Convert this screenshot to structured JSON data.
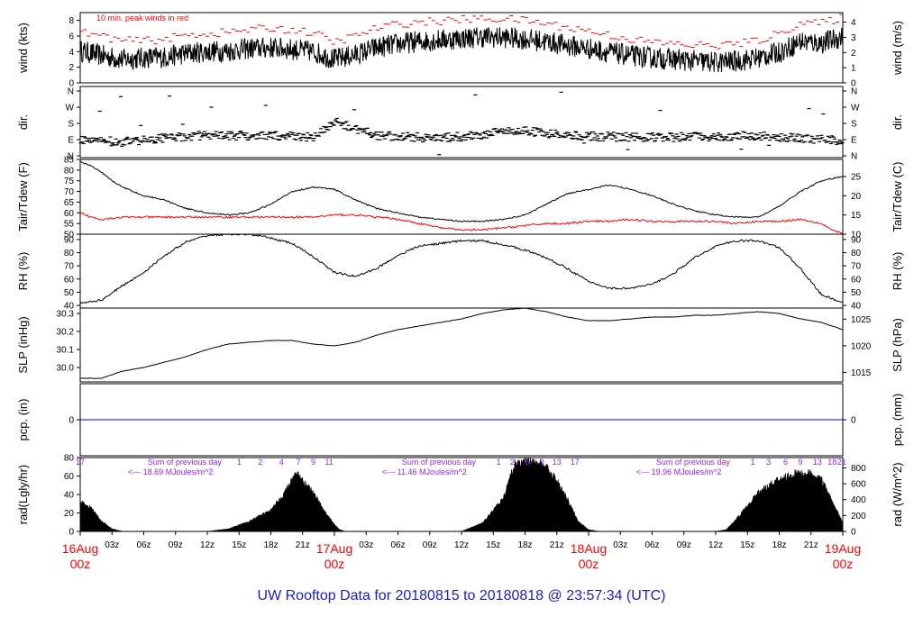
{
  "title": "UW Rooftop Data for 20180815  to  20180818 @ 23:57:34  (UTC)",
  "colors": {
    "black": "#000000",
    "red": "#ff0000",
    "blue": "#0000ff",
    "purple": "#a020f0",
    "title_blue": "#1a1ad6"
  },
  "x_axis": {
    "ticks": [
      "03z",
      "06z",
      "09z",
      "12z",
      "15z",
      "18z",
      "21z",
      "03z",
      "06z",
      "09z",
      "12z",
      "15z",
      "18z",
      "21z",
      "03z",
      "06z",
      "09z",
      "12z",
      "15z",
      "18z",
      "21z"
    ],
    "day_labels": [
      {
        "hour": 0,
        "top": "16Aug",
        "bottom": "00z"
      },
      {
        "hour": 24,
        "top": "17Aug",
        "bottom": "00z"
      },
      {
        "hour": 48,
        "top": "18Aug",
        "bottom": "00z"
      },
      {
        "hour": 72,
        "top": "19Aug",
        "bottom": "00z"
      }
    ]
  },
  "panels": {
    "wind": {
      "left_label": "wind (kts)",
      "right_label": "wind (m/s)",
      "left_ticks": [
        "0",
        "2",
        "4",
        "6",
        "8"
      ],
      "right_ticks": [
        "0",
        "1",
        "2",
        "3",
        "4"
      ],
      "note": "10 min. peak winds in red"
    },
    "dir": {
      "left_label": "dir.",
      "right_label": "dir.",
      "ticks": [
        "N",
        "W",
        "S",
        "E",
        "N"
      ]
    },
    "temp": {
      "left_label": "Tair/Tdew (F)",
      "right_label": "Tair/Tdew (C)",
      "left_ticks": [
        "50",
        "55",
        "60",
        "65",
        "70",
        "75",
        "80",
        "85"
      ],
      "right_ticks": [
        "10",
        "15",
        "20",
        "25"
      ]
    },
    "rh": {
      "left_label": "RH (%)",
      "right_label": "RH (%)",
      "ticks": [
        "40",
        "50",
        "60",
        "70",
        "80",
        "90"
      ]
    },
    "slp": {
      "left_label": "SLP (inHg)",
      "right_label": "SLP (hPa)",
      "left_ticks": [
        "30.0",
        "30.1",
        "30.2",
        "30.3"
      ],
      "right_ticks": [
        "1015",
        "1020",
        "1025"
      ]
    },
    "pcp": {
      "left_label": "pcp. (in)",
      "right_label": "pcp. (mm)",
      "left_ticks": [
        "0"
      ],
      "right_ticks": [
        "0"
      ]
    },
    "rad": {
      "left_label": "rad(Lgly/hr)",
      "right_label": "rad (W/m^2)",
      "left_ticks": [
        "0",
        "20",
        "40",
        "60",
        "80"
      ],
      "right_ticks": [
        "0",
        "200",
        "400",
        "600",
        "800"
      ],
      "daily_sums": [
        {
          "line1": "Sum of previous day",
          "line2": "<--- 18.69 MJoules/m^2"
        },
        {
          "line1": "Sum of previous day",
          "line2": "<--- 11.46 MJoules/m^2"
        },
        {
          "line1": "Sum of previous day",
          "line2": "<--- 19.96 MJoules/m^2"
        }
      ],
      "hour_marks": [
        {
          "hour": 0,
          "label": "17"
        },
        {
          "hour": 15,
          "label": "1"
        },
        {
          "hour": 17,
          "label": "2"
        },
        {
          "hour": 19,
          "label": "4"
        },
        {
          "hour": 20.6,
          "label": "7"
        },
        {
          "hour": 22,
          "label": "9"
        },
        {
          "hour": 23.5,
          "label": "11"
        },
        {
          "hour": 39.5,
          "label": "1"
        },
        {
          "hour": 40.8,
          "label": "2"
        },
        {
          "hour": 42.2,
          "label": "6"
        },
        {
          "hour": 43.6,
          "label": "9"
        },
        {
          "hour": 45,
          "label": "13"
        },
        {
          "hour": 46.7,
          "label": "17"
        },
        {
          "hour": 63.5,
          "label": "1"
        },
        {
          "hour": 65,
          "label": "3"
        },
        {
          "hour": 66.6,
          "label": "6"
        },
        {
          "hour": 68,
          "label": "9"
        },
        {
          "hour": 69.6,
          "label": "13"
        },
        {
          "hour": 71,
          "label": "18"
        },
        {
          "hour": 71.9,
          "label": "21"
        }
      ]
    }
  },
  "chart_data": {
    "type": "line",
    "title": "UW Rooftop Data for 20180815  to  20180818 @ 23:57:34  (UTC)",
    "x_unit": "hours since 16Aug 00z",
    "xlim": [
      0,
      72
    ],
    "series": [
      {
        "name": "wind (kts)",
        "ylim": [
          0,
          9
        ],
        "x": [
          0,
          2,
          4,
          6,
          8,
          10,
          12,
          14,
          16,
          18,
          20,
          22,
          24,
          26,
          28,
          30,
          32,
          34,
          36,
          38,
          40,
          42,
          44,
          46,
          48,
          50,
          52,
          54,
          56,
          58,
          60,
          62,
          64,
          66,
          68,
          70,
          72
        ],
        "values": [
          4.1,
          3.5,
          3.0,
          3.2,
          3.3,
          3.8,
          4.0,
          4.1,
          4.4,
          4.5,
          4.3,
          4.0,
          3.0,
          3.6,
          4.5,
          5.0,
          5.3,
          5.5,
          5.7,
          5.9,
          5.8,
          5.6,
          5.3,
          4.8,
          4.4,
          3.9,
          3.5,
          3.2,
          3.0,
          2.8,
          2.6,
          2.8,
          3.2,
          3.9,
          5.3,
          5.1,
          5.9
        ]
      },
      {
        "name": "10 min. peak winds",
        "ylim": [
          0,
          9
        ],
        "x": [
          0,
          2,
          4,
          6,
          8,
          10,
          12,
          14,
          16,
          18,
          20,
          22,
          24,
          26,
          28,
          30,
          32,
          34,
          36,
          38,
          40,
          42,
          44,
          46,
          48,
          50,
          52,
          54,
          56,
          58,
          60,
          62,
          64,
          66,
          68,
          70,
          72
        ],
        "values": [
          6.5,
          6.0,
          5.4,
          5.4,
          5.6,
          6.1,
          6.3,
          6.5,
          6.8,
          7.0,
          6.8,
          6.4,
          5.2,
          6.0,
          7.0,
          7.5,
          7.8,
          7.9,
          8.1,
          8.2,
          8.2,
          8.0,
          7.6,
          7.1,
          6.7,
          6.1,
          5.6,
          5.2,
          5.0,
          4.8,
          4.8,
          5.0,
          5.4,
          6.3,
          7.7,
          7.6,
          8.4
        ]
      },
      {
        "name": "dir.",
        "ylim": [
          0,
          360
        ],
        "x": [
          0,
          4,
          8,
          12,
          16,
          20,
          22,
          23,
          24,
          28,
          32,
          36,
          40,
          42,
          44,
          48,
          52,
          56,
          60,
          64,
          68,
          72
        ],
        "values": [
          275,
          282,
          260,
          245,
          248,
          252,
          255,
          215,
          170,
          248,
          258,
          255,
          225,
          220,
          235,
          252,
          255,
          258,
          252,
          248,
          262,
          275
        ]
      },
      {
        "name": "Tair (F)",
        "ylim": [
          50,
          85
        ],
        "x": [
          0,
          1,
          2,
          3,
          4,
          6,
          8,
          10,
          12,
          14,
          16,
          18,
          20,
          22,
          24,
          26,
          28,
          30,
          32,
          34,
          36,
          38,
          40,
          42,
          44,
          46,
          48,
          50,
          52,
          54,
          56,
          58,
          60,
          62,
          64,
          66,
          68,
          70,
          72
        ],
        "values": [
          84,
          82,
          79,
          75,
          72,
          68,
          66,
          62,
          60,
          59,
          60,
          64,
          70,
          72,
          71,
          66,
          62,
          60,
          58,
          57,
          56,
          56,
          57,
          59,
          64,
          69,
          71,
          73,
          71,
          68,
          64,
          61,
          59,
          58,
          58,
          63,
          70,
          75,
          77
        ]
      },
      {
        "name": "Tdew (F)",
        "ylim": [
          50,
          85
        ],
        "x": [
          0,
          1,
          2,
          4,
          6,
          8,
          10,
          12,
          14,
          16,
          18,
          20,
          22,
          24,
          26,
          28,
          30,
          32,
          34,
          36,
          38,
          40,
          42,
          44,
          46,
          48,
          50,
          52,
          54,
          56,
          58,
          60,
          62,
          64,
          66,
          68,
          70,
          71,
          72
        ],
        "values": [
          60,
          58,
          57,
          58,
          58,
          58,
          58,
          58,
          58,
          58,
          58,
          58,
          58,
          59,
          59,
          58,
          57,
          55,
          53,
          52,
          52,
          53,
          54,
          55,
          55,
          56,
          56,
          57,
          56,
          56,
          56,
          56,
          55,
          56,
          56,
          57,
          55,
          52,
          50
        ]
      },
      {
        "name": "RH (%)",
        "ylim": [
          38,
          94
        ],
        "x": [
          0,
          2,
          4,
          6,
          8,
          10,
          12,
          14,
          16,
          18,
          20,
          22,
          24,
          26,
          28,
          30,
          32,
          34,
          36,
          38,
          40,
          42,
          44,
          46,
          48,
          50,
          52,
          54,
          56,
          58,
          60,
          62,
          64,
          66,
          68,
          70,
          72
        ],
        "values": [
          42,
          44,
          55,
          65,
          78,
          88,
          93,
          94,
          94,
          91,
          87,
          77,
          65,
          62,
          68,
          78,
          85,
          87,
          89,
          89,
          86,
          82,
          76,
          68,
          58,
          53,
          53,
          56,
          64,
          76,
          85,
          89,
          89,
          84,
          68,
          48,
          42
        ]
      },
      {
        "name": "SLP (inHg)",
        "ylim": [
          29.92,
          30.33
        ],
        "x": [
          0,
          2,
          4,
          6,
          8,
          10,
          12,
          14,
          16,
          18,
          20,
          22,
          24,
          26,
          28,
          30,
          32,
          34,
          36,
          38,
          40,
          42,
          44,
          46,
          48,
          50,
          52,
          54,
          56,
          58,
          60,
          62,
          64,
          66,
          68,
          70,
          72
        ],
        "values": [
          29.94,
          29.94,
          29.98,
          30.0,
          30.03,
          30.06,
          30.1,
          30.13,
          30.14,
          30.15,
          30.15,
          30.13,
          30.12,
          30.14,
          30.18,
          30.21,
          30.23,
          30.25,
          30.27,
          30.3,
          30.32,
          30.33,
          30.31,
          30.28,
          30.26,
          30.26,
          30.27,
          30.28,
          30.28,
          30.29,
          30.29,
          30.3,
          30.31,
          30.3,
          30.27,
          30.25,
          30.21
        ]
      },
      {
        "name": "pcp. (in)",
        "ylim": [
          -1,
          1
        ],
        "x": [
          0,
          72
        ],
        "values": [
          0,
          0
        ]
      },
      {
        "name": "rad (Lgly/hr)",
        "ylim": [
          0,
          80
        ],
        "x": [
          0,
          1,
          2,
          3,
          4,
          5,
          12,
          14,
          16,
          18,
          19,
          20,
          20.5,
          21,
          22,
          23,
          24,
          24.5,
          25,
          36,
          38,
          40,
          41,
          42,
          42.5,
          43,
          44,
          45,
          46,
          47,
          48,
          49,
          60,
          61,
          62,
          64,
          66,
          67,
          68,
          69,
          70,
          71,
          72
        ],
        "values": [
          35,
          28,
          12,
          3,
          0,
          0,
          0,
          3,
          12,
          25,
          40,
          60,
          68,
          60,
          45,
          25,
          8,
          2,
          0,
          0,
          10,
          40,
          78,
          80,
          82,
          82,
          75,
          60,
          38,
          12,
          2,
          0,
          0,
          2,
          15,
          45,
          62,
          66,
          68,
          67,
          60,
          35,
          10
        ]
      }
    ]
  }
}
